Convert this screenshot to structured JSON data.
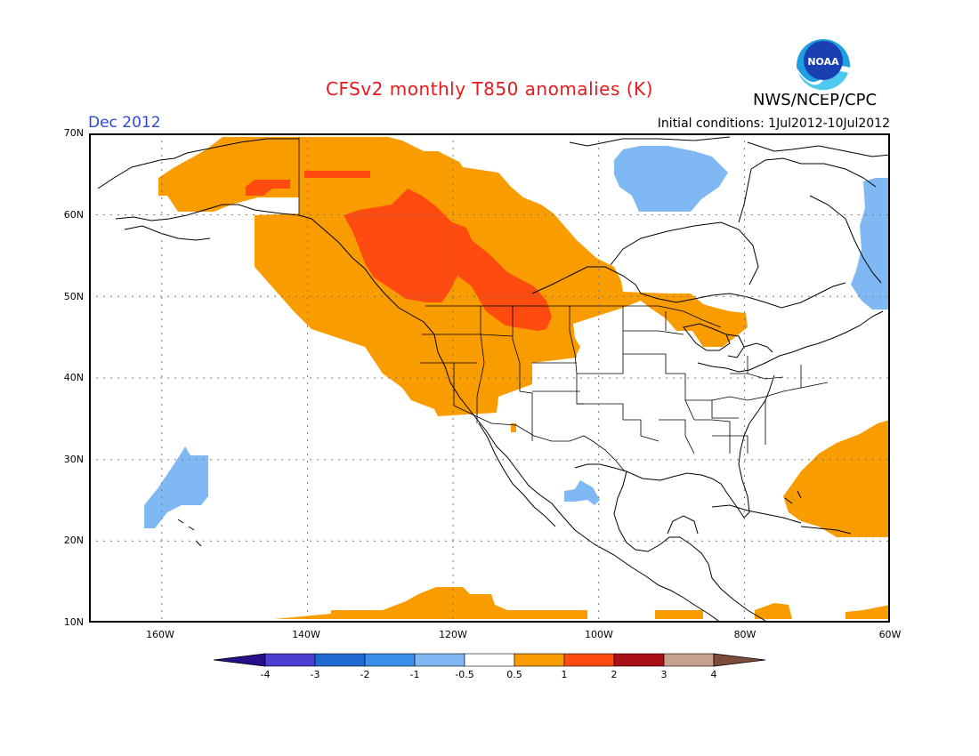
{
  "header": {
    "title": "CFSv2 monthly T850 anomalies (K)",
    "month": "Dec 2012",
    "initial_conditions": "Initial conditions: 1Jul2012-10Jul2012",
    "agency": "NWS/NCEP/CPC",
    "logo_text": "NOAA"
  },
  "axes": {
    "lat_labels": [
      "70N",
      "60N",
      "50N",
      "40N",
      "30N",
      "20N",
      "10N"
    ],
    "lon_labels": [
      "160W",
      "140W",
      "120W",
      "100W",
      "80W",
      "60W"
    ]
  },
  "colorbar": {
    "labels": [
      "-4",
      "-3",
      "-2",
      "-1",
      "-0.5",
      "0.5",
      "1",
      "2",
      "3",
      "4"
    ],
    "colors": [
      "#2a0f8c",
      "#4a3fd0",
      "#1f6ad2",
      "#3b8eea",
      "#7fb8f2",
      "#ffffff",
      "#f99c00",
      "#ff4a10",
      "#a90f14",
      "#c7a08e",
      "#7d4c3c"
    ]
  },
  "legend_colors": {
    "warm_05_1": "#f99c00",
    "warm_1_2": "#ff4a10",
    "cool_m1_m05": "#7fb8f2"
  }
}
